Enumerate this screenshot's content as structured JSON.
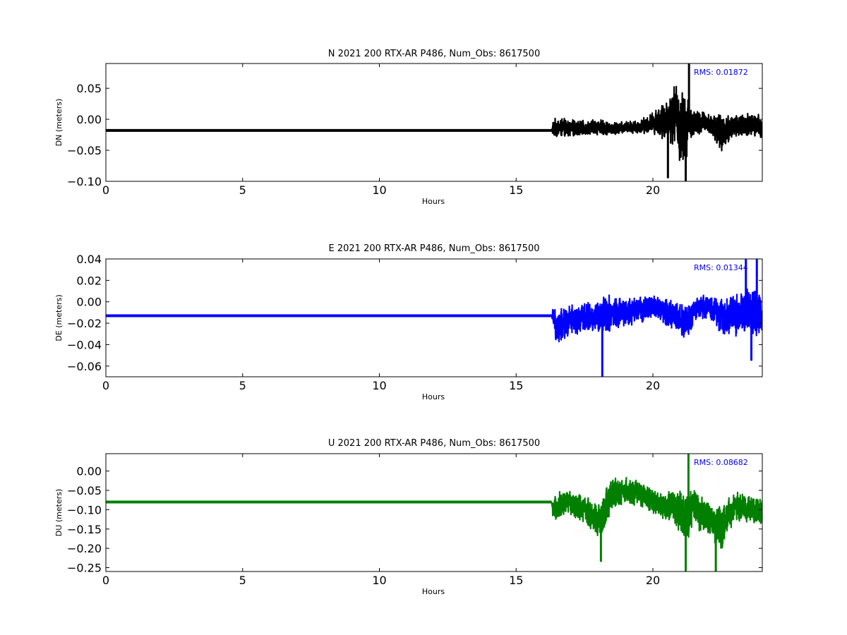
{
  "chart_data": [
    {
      "type": "line",
      "title": "N 2021 200 RTX-AR  P486, Num_Obs: 8617500",
      "xlabel": "Hours",
      "ylabel": "DN (meters)",
      "xlim": [
        0,
        24
      ],
      "ylim": [
        -0.1,
        0.09
      ],
      "xticks": [
        0,
        5,
        10,
        15,
        20
      ],
      "yticks": [
        0.05,
        0.0,
        -0.05,
        -0.1
      ],
      "ytick_labels": [
        "0.05",
        "0.00",
        "−0.05",
        "−0.10"
      ],
      "color": "#000000",
      "rms_text": "RMS:  0.01872",
      "series": [
        {
          "x": [
            0,
            16.3,
            16.35,
            16.5,
            17.0,
            17.5,
            18.0,
            18.5,
            19.0,
            19.5,
            20.0,
            20.5,
            20.8,
            21.0,
            21.2,
            21.3,
            21.5,
            22.0,
            22.5,
            23.0,
            23.5,
            24.0
          ],
          "y": [
            -0.018,
            -0.018,
            -0.015,
            -0.013,
            -0.015,
            -0.014,
            -0.012,
            -0.016,
            -0.013,
            -0.012,
            -0.005,
            -0.002,
            0.01,
            -0.012,
            -0.02,
            0.0,
            -0.008,
            -0.005,
            -0.022,
            -0.01,
            -0.01,
            -0.012
          ],
          "amp": [
            0,
            0,
            0.015,
            0.017,
            0.015,
            0.012,
            0.014,
            0.011,
            0.01,
            0.012,
            0.018,
            0.04,
            0.055,
            0.07,
            0.06,
            0.035,
            0.025,
            0.018,
            0.03,
            0.022,
            0.023,
            0.02
          ],
          "spikes": [
            [
              21.2,
              -0.1
            ],
            [
              21.32,
              0.09
            ],
            [
              20.55,
              -0.095
            ],
            [
              23.95,
              -0.03
            ]
          ]
        }
      ]
    },
    {
      "type": "line",
      "title": "E 2021 200 RTX-AR  P486, Num_Obs: 8617500",
      "xlabel": "Hours",
      "ylabel": "DE (meters)",
      "xlim": [
        0,
        24
      ],
      "ylim": [
        -0.07,
        0.04
      ],
      "xticks": [
        0,
        5,
        10,
        15,
        20
      ],
      "yticks": [
        0.04,
        0.02,
        0.0,
        -0.02,
        -0.04,
        -0.06
      ],
      "ytick_labels": [
        "0.04",
        "0.02",
        "0.00",
        "−0.02",
        "−0.04",
        "−0.06"
      ],
      "color": "#0000ff",
      "rms_text": "RMS:  0.01344",
      "series": [
        {
          "x": [
            0,
            16.3,
            16.35,
            16.5,
            17.0,
            17.5,
            18.0,
            18.2,
            18.5,
            19.0,
            19.5,
            20.0,
            20.5,
            21.0,
            21.2,
            21.5,
            22.0,
            22.5,
            23.0,
            23.5,
            24.0
          ],
          "y": [
            -0.013,
            -0.013,
            -0.015,
            -0.025,
            -0.018,
            -0.015,
            -0.014,
            -0.01,
            -0.012,
            -0.01,
            -0.008,
            -0.004,
            -0.01,
            -0.015,
            -0.022,
            -0.008,
            -0.004,
            -0.014,
            -0.012,
            -0.008,
            -0.012
          ],
          "amp": [
            0,
            0,
            0.012,
            0.018,
            0.016,
            0.014,
            0.016,
            0.02,
            0.018,
            0.015,
            0.013,
            0.012,
            0.014,
            0.016,
            0.02,
            0.012,
            0.012,
            0.018,
            0.022,
            0.025,
            0.024
          ],
          "spikes": [
            [
              18.15,
              -0.07
            ],
            [
              23.4,
              0.04
            ],
            [
              23.8,
              0.04
            ],
            [
              23.6,
              -0.055
            ]
          ]
        }
      ]
    },
    {
      "type": "line",
      "title": "U 2021 200 RTX-AR  P486, Num_Obs: 8617500",
      "xlabel": "Hours",
      "ylabel": "DU (meters)",
      "xlim": [
        0,
        24
      ],
      "ylim": [
        -0.26,
        0.045
      ],
      "xticks": [
        0,
        5,
        10,
        15,
        20
      ],
      "yticks": [
        0.0,
        -0.05,
        -0.1,
        -0.15,
        -0.2,
        -0.25
      ],
      "ytick_labels": [
        "0.00",
        "−0.05",
        "−0.10",
        "−0.15",
        "−0.20",
        "−0.25"
      ],
      "color": "#007f00",
      "rms_text": "RMS:  0.08682",
      "series": [
        {
          "x": [
            0,
            16.3,
            16.35,
            16.5,
            17.0,
            17.5,
            18.0,
            18.2,
            18.5,
            19.0,
            19.5,
            20.0,
            20.5,
            21.0,
            21.2,
            21.5,
            22.0,
            22.5,
            23.0,
            23.5,
            24.0
          ],
          "y": [
            -0.08,
            -0.08,
            -0.11,
            -0.09,
            -0.08,
            -0.1,
            -0.13,
            -0.11,
            -0.06,
            -0.05,
            -0.06,
            -0.08,
            -0.09,
            -0.1,
            -0.13,
            -0.09,
            -0.12,
            -0.15,
            -0.09,
            -0.1,
            -0.1
          ],
          "amp": [
            0,
            0,
            0.03,
            0.04,
            0.035,
            0.04,
            0.05,
            0.06,
            0.05,
            0.035,
            0.035,
            0.035,
            0.04,
            0.06,
            0.07,
            0.055,
            0.05,
            0.06,
            0.04,
            0.04,
            0.04
          ],
          "spikes": [
            [
              21.2,
              -0.26
            ],
            [
              21.3,
              0.045
            ],
            [
              22.3,
              -0.26
            ],
            [
              18.1,
              -0.235
            ]
          ]
        }
      ]
    }
  ]
}
